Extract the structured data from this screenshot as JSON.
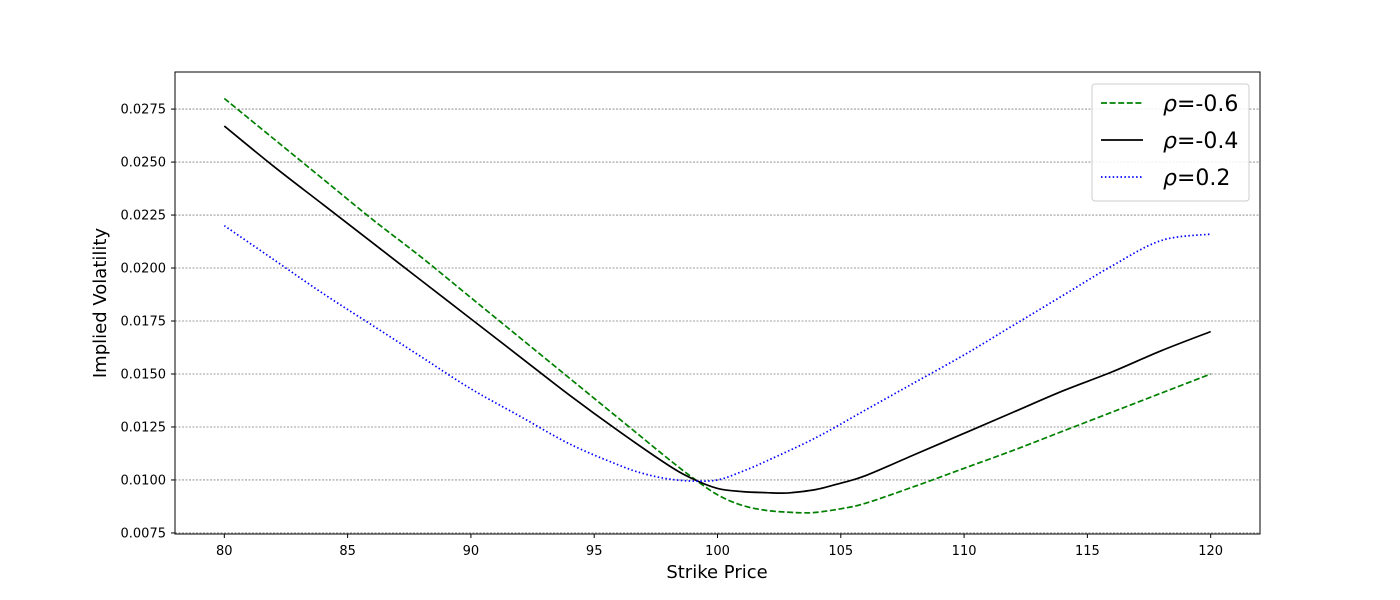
{
  "chart_data": {
    "type": "line",
    "xlabel": "Strike Price",
    "ylabel": "Implied Volatility",
    "xlim": [
      78,
      122
    ],
    "ylim": [
      0.00745,
      0.02925
    ],
    "x_ticks": [
      80,
      85,
      90,
      95,
      100,
      105,
      110,
      115,
      120
    ],
    "x_tick_labels": [
      "80",
      "85",
      "90",
      "95",
      "100",
      "105",
      "110",
      "115",
      "120"
    ],
    "y_ticks": [
      0.0075,
      0.01,
      0.0125,
      0.015,
      0.0175,
      0.02,
      0.0225,
      0.025,
      0.0275
    ],
    "y_tick_labels": [
      "0.0075",
      "0.0100",
      "0.0125",
      "0.0150",
      "0.0175",
      "0.0200",
      "0.0225",
      "0.0250",
      "0.0275"
    ],
    "grid": "horizontal dashed",
    "legend_position": "upper right",
    "series": [
      {
        "name": "ρ=-0.6",
        "legend_symbol": "ρ",
        "legend_value": "=-0.6",
        "color": "#008000",
        "linestyle": "dashed",
        "x": [
          80,
          82,
          84,
          86,
          88,
          90,
          92,
          94,
          96,
          98,
          99,
          100,
          101,
          102,
          103,
          103.5,
          104,
          105,
          106,
          108,
          110,
          112,
          114,
          116,
          118,
          120
        ],
        "y": [
          0.028,
          0.0261,
          0.0242,
          0.0223,
          0.0205,
          0.0186,
          0.0167,
          0.0148,
          0.0129,
          0.011,
          0.0101,
          0.0093,
          0.0088,
          0.00856,
          0.00847,
          0.00845,
          0.00847,
          0.00864,
          0.0089,
          0.0097,
          0.01055,
          0.0114,
          0.0123,
          0.0132,
          0.0141,
          0.015
        ]
      },
      {
        "name": "ρ=-0.4",
        "legend_symbol": "ρ",
        "legend_value": "=-0.4",
        "color": "#000000",
        "linestyle": "solid",
        "x": [
          80,
          82,
          84,
          86,
          88,
          90,
          92,
          94,
          96,
          98,
          99,
          100,
          101,
          102,
          102.5,
          103,
          104,
          105,
          106,
          108,
          110,
          112,
          114,
          116,
          118,
          120
        ],
        "y": [
          0.0267,
          0.0248,
          0.023,
          0.0212,
          0.0194,
          0.0176,
          0.0158,
          0.014,
          0.0123,
          0.0107,
          0.01005,
          0.0096,
          0.00945,
          0.0094,
          0.00938,
          0.0094,
          0.00955,
          0.00985,
          0.0102,
          0.0112,
          0.0122,
          0.0132,
          0.0142,
          0.0151,
          0.0161,
          0.017
        ]
      },
      {
        "name": "ρ=0.2",
        "legend_symbol": "ρ",
        "legend_value": "=0.2",
        "color": "#0000ff",
        "linestyle": "dotted",
        "x": [
          80,
          82,
          84,
          86,
          88,
          90,
          92,
          94,
          96,
          97,
          98,
          99,
          100,
          101,
          102,
          104,
          106,
          108,
          110,
          112,
          114,
          116,
          118,
          120
        ],
        "y": [
          0.022,
          0.0204,
          0.0188,
          0.0173,
          0.0158,
          0.0143,
          0.013,
          0.0117,
          0.0107,
          0.0103,
          0.01005,
          0.00995,
          0.01,
          0.0104,
          0.0109,
          0.012,
          0.0133,
          0.0146,
          0.0159,
          0.0173,
          0.0187,
          0.0201,
          0.0213,
          0.0216
        ]
      }
    ]
  }
}
